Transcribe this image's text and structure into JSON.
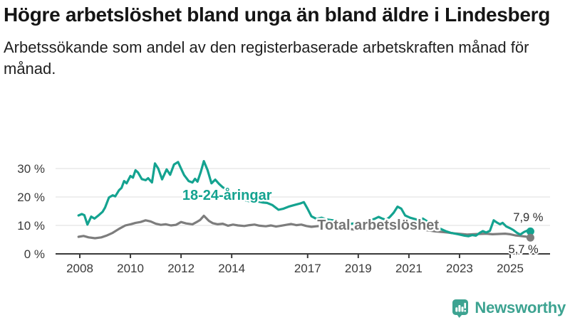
{
  "header": {
    "title": "Högre arbetslöshet bland unga än bland äldre i Lindesberg",
    "subtitle": "Arbetssökande som andel av den registerbaserade arbetskraften månad för månad."
  },
  "chart_data": {
    "type": "line",
    "unit": "%",
    "grid": true,
    "x_range": [
      2007.95,
      2025.8
    ],
    "ylim": [
      0,
      33
    ],
    "yticks": [
      0,
      10,
      20,
      30
    ],
    "ytick_labels": [
      "0 %",
      "10 %",
      "20 %",
      "30 %"
    ],
    "xticks": [
      2008,
      2010,
      2012,
      2014,
      2017,
      2019,
      2021,
      2023,
      2025
    ],
    "axis_color": "#3a3a3a",
    "grid_color": "#dcdcdc",
    "series": [
      {
        "name": "18-24-åringar",
        "color": "#14a390",
        "end_value": 7.9,
        "end_label": "7,9 %",
        "label_pos": [
          2012.05,
          19.0
        ],
        "end_label_pos": [
          2025.12,
          11.5
        ],
        "points": [
          [
            2007.95,
            13.5
          ],
          [
            2008.08,
            14.0
          ],
          [
            2008.18,
            13.6
          ],
          [
            2008.3,
            10.3
          ],
          [
            2008.45,
            13.1
          ],
          [
            2008.58,
            12.4
          ],
          [
            2008.75,
            13.6
          ],
          [
            2008.9,
            14.8
          ],
          [
            2009.0,
            16.3
          ],
          [
            2009.15,
            19.8
          ],
          [
            2009.3,
            20.6
          ],
          [
            2009.4,
            20.2
          ],
          [
            2009.55,
            22.4
          ],
          [
            2009.65,
            23.2
          ],
          [
            2009.75,
            25.6
          ],
          [
            2009.85,
            24.8
          ],
          [
            2010.0,
            27.4
          ],
          [
            2010.1,
            26.8
          ],
          [
            2010.2,
            29.4
          ],
          [
            2010.3,
            28.6
          ],
          [
            2010.45,
            26.3
          ],
          [
            2010.6,
            25.9
          ],
          [
            2010.7,
            26.6
          ],
          [
            2010.85,
            25.1
          ],
          [
            2010.97,
            31.8
          ],
          [
            2011.1,
            30.0
          ],
          [
            2011.25,
            26.2
          ],
          [
            2011.43,
            29.7
          ],
          [
            2011.57,
            27.8
          ],
          [
            2011.72,
            31.4
          ],
          [
            2011.88,
            32.3
          ],
          [
            2012.0,
            30.0
          ],
          [
            2012.12,
            27.7
          ],
          [
            2012.3,
            25.6
          ],
          [
            2012.45,
            25.1
          ],
          [
            2012.55,
            26.4
          ],
          [
            2012.65,
            25.4
          ],
          [
            2012.78,
            28.8
          ],
          [
            2012.9,
            32.6
          ],
          [
            2013.05,
            29.4
          ],
          [
            2013.2,
            24.8
          ],
          [
            2013.35,
            26.1
          ],
          [
            2013.5,
            24.6
          ],
          [
            2013.65,
            23.4
          ],
          [
            2013.8,
            22.6
          ],
          [
            2014.0,
            21.4
          ],
          [
            2014.2,
            20.2
          ],
          [
            2014.4,
            19.2
          ],
          [
            2014.6,
            18.7
          ],
          [
            2014.75,
            18.4
          ],
          [
            2014.9,
            18.0
          ],
          [
            2015.05,
            18.4
          ],
          [
            2015.2,
            18.1
          ],
          [
            2015.4,
            17.9
          ],
          [
            2015.6,
            17.2
          ],
          [
            2015.85,
            15.5
          ],
          [
            2016.05,
            15.9
          ],
          [
            2016.25,
            16.6
          ],
          [
            2016.45,
            17.1
          ],
          [
            2016.7,
            17.7
          ],
          [
            2016.85,
            18.2
          ],
          [
            2017.0,
            15.8
          ],
          [
            2017.15,
            13.2
          ],
          [
            2017.35,
            12.3
          ],
          [
            2017.55,
            12.7
          ],
          [
            2017.75,
            12.1
          ],
          [
            2018.0,
            11.8
          ],
          [
            2018.25,
            11.2
          ],
          [
            2018.5,
            10.8
          ],
          [
            2018.75,
            10.6
          ],
          [
            2019.0,
            10.9
          ],
          [
            2019.3,
            11.4
          ],
          [
            2019.5,
            11.9
          ],
          [
            2019.64,
            12.3
          ],
          [
            2019.8,
            13.0
          ],
          [
            2019.95,
            12.4
          ],
          [
            2020.1,
            11.9
          ],
          [
            2020.25,
            13.0
          ],
          [
            2020.4,
            14.5
          ],
          [
            2020.55,
            16.6
          ],
          [
            2020.7,
            15.9
          ],
          [
            2020.85,
            13.5
          ],
          [
            2021.05,
            12.7
          ],
          [
            2021.25,
            12.2
          ],
          [
            2021.4,
            11.8
          ],
          [
            2021.55,
            12.4
          ],
          [
            2021.75,
            11.3
          ],
          [
            2021.95,
            10.2
          ],
          [
            2022.2,
            9.0
          ],
          [
            2022.45,
            8.0
          ],
          [
            2022.65,
            7.4
          ],
          [
            2022.95,
            6.9
          ],
          [
            2023.2,
            6.4
          ],
          [
            2023.35,
            6.2
          ],
          [
            2023.5,
            6.6
          ],
          [
            2023.65,
            6.4
          ],
          [
            2023.8,
            7.4
          ],
          [
            2023.92,
            8.0
          ],
          [
            2024.05,
            7.5
          ],
          [
            2024.2,
            8.1
          ],
          [
            2024.35,
            11.8
          ],
          [
            2024.5,
            10.9
          ],
          [
            2024.6,
            10.4
          ],
          [
            2024.7,
            10.9
          ],
          [
            2024.85,
            9.6
          ],
          [
            2025.0,
            9.0
          ],
          [
            2025.12,
            8.4
          ],
          [
            2025.27,
            7.4
          ],
          [
            2025.4,
            6.8
          ],
          [
            2025.55,
            7.7
          ],
          [
            2025.68,
            8.2
          ],
          [
            2025.8,
            7.9
          ]
        ]
      },
      {
        "name": "Total arbetslöshet",
        "color": "#7d7d7d",
        "label_color": "#757575",
        "end_value": 5.7,
        "end_label": "5,7 %",
        "label_pos": [
          2017.38,
          8.55
        ],
        "end_label_pos": [
          2024.93,
          0.3
        ],
        "points": [
          [
            2007.95,
            6.0
          ],
          [
            2008.15,
            6.3
          ],
          [
            2008.35,
            5.8
          ],
          [
            2008.6,
            5.5
          ],
          [
            2008.85,
            5.8
          ],
          [
            2009.05,
            6.4
          ],
          [
            2009.3,
            7.4
          ],
          [
            2009.55,
            8.8
          ],
          [
            2009.8,
            10.0
          ],
          [
            2010.0,
            10.4
          ],
          [
            2010.2,
            10.9
          ],
          [
            2010.4,
            11.2
          ],
          [
            2010.6,
            11.8
          ],
          [
            2010.8,
            11.4
          ],
          [
            2011.0,
            10.6
          ],
          [
            2011.2,
            10.2
          ],
          [
            2011.4,
            10.4
          ],
          [
            2011.6,
            10.0
          ],
          [
            2011.8,
            10.2
          ],
          [
            2012.0,
            11.2
          ],
          [
            2012.2,
            10.7
          ],
          [
            2012.45,
            10.4
          ],
          [
            2012.6,
            11.1
          ],
          [
            2012.75,
            11.9
          ],
          [
            2012.9,
            13.4
          ],
          [
            2013.1,
            11.6
          ],
          [
            2013.25,
            10.8
          ],
          [
            2013.45,
            10.4
          ],
          [
            2013.65,
            10.6
          ],
          [
            2013.85,
            9.9
          ],
          [
            2014.05,
            10.3
          ],
          [
            2014.25,
            10.0
          ],
          [
            2014.5,
            9.8
          ],
          [
            2014.7,
            10.1
          ],
          [
            2014.9,
            10.3
          ],
          [
            2015.1,
            9.9
          ],
          [
            2015.35,
            9.7
          ],
          [
            2015.55,
            10.0
          ],
          [
            2015.75,
            9.6
          ],
          [
            2015.95,
            9.9
          ],
          [
            2016.15,
            10.2
          ],
          [
            2016.35,
            10.5
          ],
          [
            2016.55,
            10.1
          ],
          [
            2016.75,
            10.3
          ],
          [
            2016.95,
            9.8
          ],
          [
            2017.15,
            9.5
          ],
          [
            2017.35,
            9.7
          ],
          [
            2017.6,
            9.9
          ],
          [
            2017.8,
            9.5
          ],
          [
            2018.05,
            9.2
          ],
          [
            2018.3,
            9.0
          ],
          [
            2018.55,
            8.8
          ],
          [
            2018.8,
            8.6
          ],
          [
            2019.05,
            8.5
          ],
          [
            2019.3,
            8.6
          ],
          [
            2019.55,
            8.8
          ],
          [
            2019.8,
            8.9
          ],
          [
            2020.05,
            9.1
          ],
          [
            2020.3,
            9.6
          ],
          [
            2020.55,
            9.8
          ],
          [
            2020.8,
            9.5
          ],
          [
            2021.05,
            9.1
          ],
          [
            2021.3,
            8.8
          ],
          [
            2021.55,
            8.5
          ],
          [
            2021.8,
            8.2
          ],
          [
            2022.05,
            7.9
          ],
          [
            2022.3,
            7.7
          ],
          [
            2022.55,
            7.5
          ],
          [
            2022.8,
            7.2
          ],
          [
            2023.05,
            7.0
          ],
          [
            2023.3,
            6.8
          ],
          [
            2023.55,
            6.9
          ],
          [
            2023.8,
            7.0
          ],
          [
            2024.05,
            7.1
          ],
          [
            2024.3,
            6.9
          ],
          [
            2024.55,
            7.0
          ],
          [
            2024.8,
            7.1
          ],
          [
            2025.0,
            6.9
          ],
          [
            2025.2,
            6.5
          ],
          [
            2025.4,
            6.3
          ],
          [
            2025.6,
            6.1
          ],
          [
            2025.8,
            5.7
          ]
        ]
      }
    ]
  },
  "footer": {
    "brand": "Newsworthy",
    "logo_color": "#3da391",
    "logo_icon": "bar-chart-pin-icon"
  }
}
